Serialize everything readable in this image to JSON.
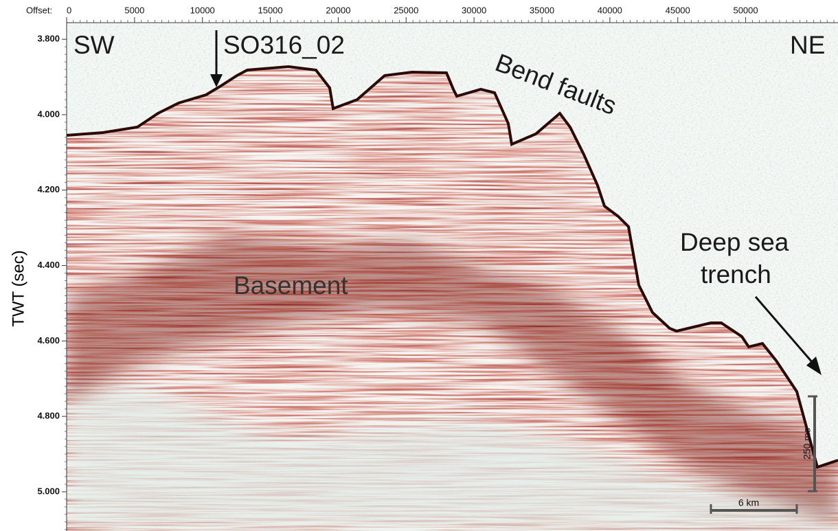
{
  "chart_data": {
    "type": "seismic-section",
    "x_label": "Offset:",
    "y_label": "TWT (sec)",
    "xlim": [
      0,
      56800
    ],
    "ylim": [
      3.756,
      5.104
    ],
    "xticks": [
      0,
      5000,
      10000,
      15000,
      20000,
      25000,
      30000,
      35000,
      40000,
      45000,
      50000
    ],
    "yticks": [
      {
        "value": 3.8,
        "label": "3.800"
      },
      {
        "value": 4.0,
        "label": "4.000"
      },
      {
        "value": 4.2,
        "label": "4.200"
      },
      {
        "value": 4.4,
        "label": "4.400"
      },
      {
        "value": 4.6,
        "label": "4.600"
      },
      {
        "value": 4.8,
        "label": "4.800"
      },
      {
        "value": 5.0,
        "label": "5.000"
      }
    ],
    "annotations": {
      "left": "SW",
      "line": "SO316_02",
      "right": "NE",
      "faults": "Bend faults",
      "basement": "Basement",
      "trench": [
        "Deep sea",
        "trench"
      ],
      "vertical_scale": "250 ms",
      "horizontal_scale": "6 km"
    }
  }
}
